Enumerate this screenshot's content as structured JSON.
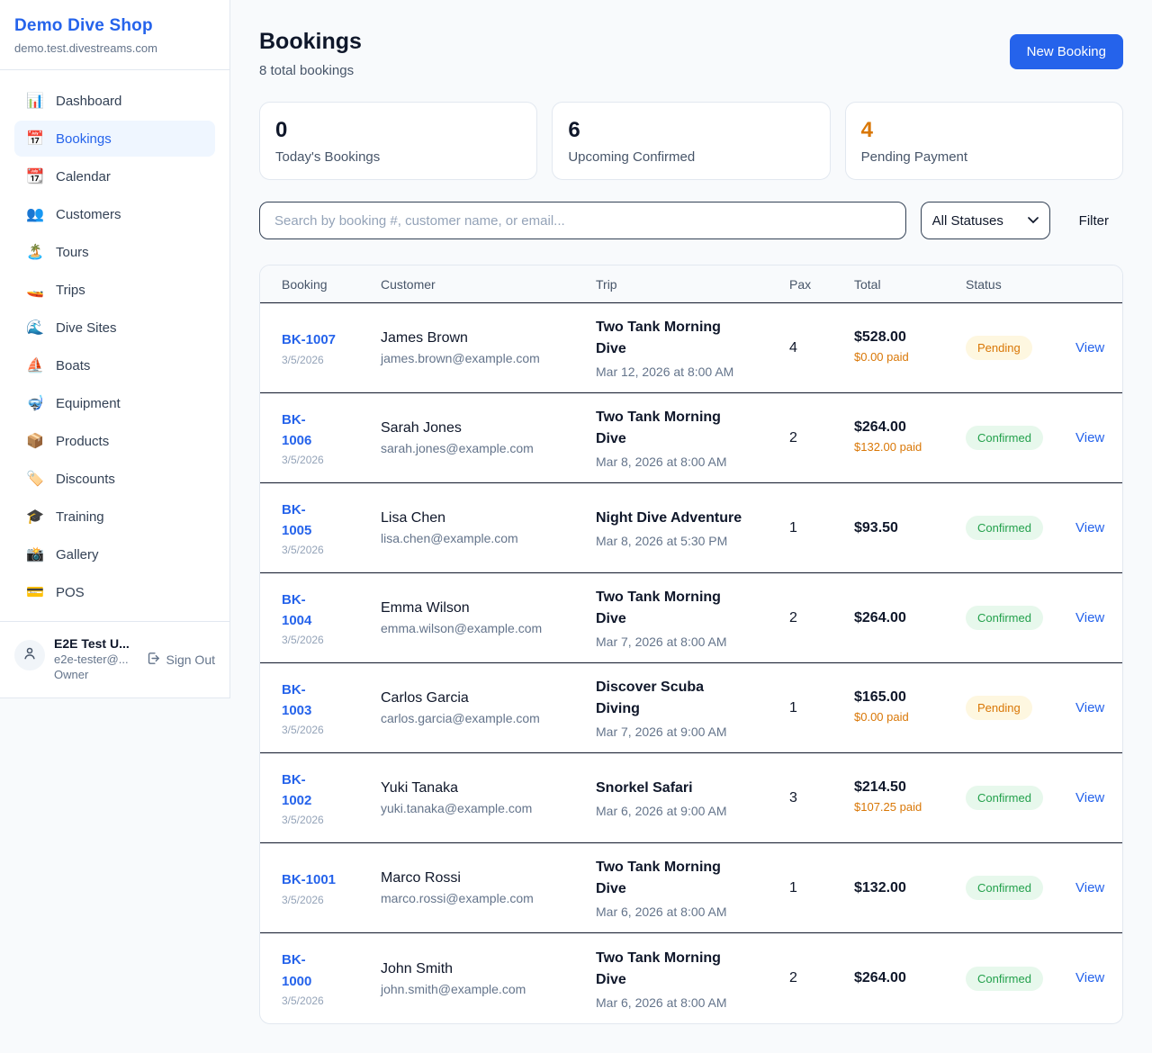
{
  "app": {
    "accent_color": "#2563eb",
    "page_bg": "#f8fafc"
  },
  "sidebar": {
    "shop_name": "Demo Dive Shop",
    "domain": "demo.test.divestreams.com",
    "items": [
      {
        "icon": "📊",
        "icon_name": "bar-chart-icon",
        "label": "Dashboard",
        "active": false
      },
      {
        "icon": "📅",
        "icon_name": "calendar-icon",
        "label": "Bookings",
        "active": true
      },
      {
        "icon": "📆",
        "icon_name": "tear-off-calendar-icon",
        "label": "Calendar",
        "active": false
      },
      {
        "icon": "👥",
        "icon_name": "people-icon",
        "label": "Customers",
        "active": false
      },
      {
        "icon": "🏝️",
        "icon_name": "island-icon",
        "label": "Tours",
        "active": false
      },
      {
        "icon": "🚤",
        "icon_name": "speedboat-icon",
        "label": "Trips",
        "active": false
      },
      {
        "icon": "🌊",
        "icon_name": "wave-icon",
        "label": "Dive Sites",
        "active": false
      },
      {
        "icon": "⛵",
        "icon_name": "sailboat-icon",
        "label": "Boats",
        "active": false
      },
      {
        "icon": "🤿",
        "icon_name": "diving-mask-icon",
        "label": "Equipment",
        "active": false
      },
      {
        "icon": "📦",
        "icon_name": "package-icon",
        "label": "Products",
        "active": false
      },
      {
        "icon": "🏷️",
        "icon_name": "tag-icon",
        "label": "Discounts",
        "active": false
      },
      {
        "icon": "🎓",
        "icon_name": "graduation-cap-icon",
        "label": "Training",
        "active": false
      },
      {
        "icon": "📸",
        "icon_name": "camera-icon",
        "label": "Gallery",
        "active": false
      },
      {
        "icon": "💳",
        "icon_name": "credit-card-icon",
        "label": "POS",
        "active": false
      }
    ],
    "user": {
      "name": "E2E Test U...",
      "email": "e2e-tester@...",
      "role": "Owner",
      "sign_out_label": "Sign Out"
    }
  },
  "header": {
    "title": "Bookings",
    "subtitle": "8 total bookings",
    "new_booking_label": "New Booking"
  },
  "stats": [
    {
      "value": "0",
      "label": "Today's Bookings",
      "value_color": "#0f172a"
    },
    {
      "value": "6",
      "label": "Upcoming Confirmed",
      "value_color": "#0f172a"
    },
    {
      "value": "4",
      "label": "Pending Payment",
      "value_color": "#d97706"
    }
  ],
  "filters": {
    "search_placeholder": "Search by booking #, customer name, or email...",
    "status_selected": "All Statuses",
    "filter_label": "Filter"
  },
  "table": {
    "columns": [
      "Booking",
      "Customer",
      "Trip",
      "Pax",
      "Total",
      "Status"
    ],
    "view_label": "View",
    "status_styles": {
      "Pending": {
        "bg": "#fef7e0",
        "text": "#d97706"
      },
      "Confirmed": {
        "bg": "#e7f8ec",
        "text": "#22a04b"
      }
    },
    "rows": [
      {
        "id": "BK-1007",
        "id_wrapped": false,
        "date": "3/5/2026",
        "customer": "James Brown",
        "email": "james.brown@example.com",
        "trip": "Two Tank Morning Dive",
        "trip_when": "Mar 12, 2026 at 8:00 AM",
        "pax": "4",
        "total": "$528.00",
        "paid": "$0.00 paid",
        "status": "Pending"
      },
      {
        "id": "BK-1006",
        "id_wrapped": true,
        "date": "3/5/2026",
        "customer": "Sarah Jones",
        "email": "sarah.jones@example.com",
        "trip": "Two Tank Morning Dive",
        "trip_when": "Mar 8, 2026 at 8:00 AM",
        "pax": "2",
        "total": "$264.00",
        "paid": "$132.00 paid",
        "status": "Confirmed"
      },
      {
        "id": "BK-1005",
        "id_wrapped": true,
        "date": "3/5/2026",
        "customer": "Lisa Chen",
        "email": "lisa.chen@example.com",
        "trip": "Night Dive Adventure",
        "trip_when": "Mar 8, 2026 at 5:30 PM",
        "pax": "1",
        "total": "$93.50",
        "paid": null,
        "status": "Confirmed"
      },
      {
        "id": "BK-1004",
        "id_wrapped": true,
        "date": "3/5/2026",
        "customer": "Emma Wilson",
        "email": "emma.wilson@example.com",
        "trip": "Two Tank Morning Dive",
        "trip_when": "Mar 7, 2026 at 8:00 AM",
        "pax": "2",
        "total": "$264.00",
        "paid": null,
        "status": "Confirmed"
      },
      {
        "id": "BK-1003",
        "id_wrapped": true,
        "date": "3/5/2026",
        "customer": "Carlos Garcia",
        "email": "carlos.garcia@example.com",
        "trip": "Discover Scuba Diving",
        "trip_when": "Mar 7, 2026 at 9:00 AM",
        "pax": "1",
        "total": "$165.00",
        "paid": "$0.00 paid",
        "status": "Pending"
      },
      {
        "id": "BK-1002",
        "id_wrapped": true,
        "date": "3/5/2026",
        "customer": "Yuki Tanaka",
        "email": "yuki.tanaka@example.com",
        "trip": "Snorkel Safari",
        "trip_when": "Mar 6, 2026 at 9:00 AM",
        "pax": "3",
        "total": "$214.50",
        "paid": "$107.25 paid",
        "status": "Confirmed"
      },
      {
        "id": "BK-1001",
        "id_wrapped": false,
        "date": "3/5/2026",
        "customer": "Marco Rossi",
        "email": "marco.rossi@example.com",
        "trip": "Two Tank Morning Dive",
        "trip_when": "Mar 6, 2026 at 8:00 AM",
        "pax": "1",
        "total": "$132.00",
        "paid": null,
        "status": "Confirmed"
      },
      {
        "id": "BK-1000",
        "id_wrapped": true,
        "date": "3/5/2026",
        "customer": "John Smith",
        "email": "john.smith@example.com",
        "trip": "Two Tank Morning Dive",
        "trip_when": "Mar 6, 2026 at 8:00 AM",
        "pax": "2",
        "total": "$264.00",
        "paid": null,
        "status": "Confirmed"
      }
    ]
  }
}
